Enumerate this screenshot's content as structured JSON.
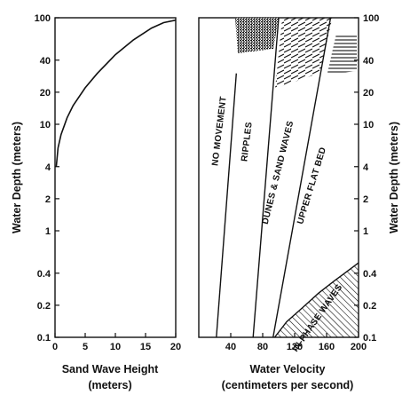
{
  "chart_data": [
    {
      "type": "line",
      "panel": "left",
      "xlabel": [
        "Sand Wave Height",
        "(meters)"
      ],
      "ylabel": "Water Depth (meters)",
      "x_ticks": [
        "0",
        "5",
        "10",
        "15",
        "20"
      ],
      "y_ticks": [
        "100",
        "40",
        "20",
        "10",
        "4",
        "2",
        "1",
        "0.4",
        "0.2",
        "0.1"
      ],
      "xlim": [
        0,
        20
      ],
      "ylim": [
        0.1,
        100
      ],
      "y_scale": "log",
      "series": [
        {
          "x": [
            0.2,
            0.5,
            1,
            2,
            3,
            5,
            7,
            10,
            13,
            16,
            18,
            20
          ],
          "y": [
            4,
            6,
            8,
            11.5,
            15,
            22,
            30,
            45,
            62,
            80,
            90,
            95
          ]
        }
      ]
    },
    {
      "type": "area",
      "panel": "right",
      "xlabel": [
        "Water Velocity",
        "(centimeters per second)"
      ],
      "ylabel": "Water Depth (meters)",
      "x_ticks": [
        "40",
        "80",
        "120",
        "160",
        "200"
      ],
      "y_ticks": [
        "100",
        "40",
        "20",
        "10",
        "4",
        "2",
        "1",
        "0.4",
        "0.2",
        "0.1"
      ],
      "xlim": [
        0,
        200
      ],
      "ylim": [
        0.1,
        100
      ],
      "y_scale": "log",
      "regions": [
        "NO MOVEMENT",
        "RIPPLES",
        "DUNES & SAND WAVES",
        "UPPER FLAT BED",
        "IN-PHASE WAVES"
      ],
      "boundaries": [
        {
          "between": "NO MOVEMENT / RIPPLES",
          "x": [
            22,
            47
          ],
          "y": [
            0.1,
            30
          ]
        },
        {
          "between": "RIPPLES / DUNES & SAND WAVES",
          "x": [
            68,
            100
          ],
          "y": [
            0.1,
            100
          ]
        },
        {
          "between": "DUNES & SAND WAVES / UPPER FLAT BED",
          "x": [
            93,
            165
          ],
          "y": [
            0.1,
            100
          ]
        },
        {
          "between": "UPPER FLAT BED / IN-PHASE WAVES",
          "x": [
            95,
            110,
            130,
            150,
            170,
            190,
            200
          ],
          "y": [
            0.1,
            0.14,
            0.19,
            0.26,
            0.34,
            0.44,
            0.5
          ]
        }
      ]
    }
  ]
}
